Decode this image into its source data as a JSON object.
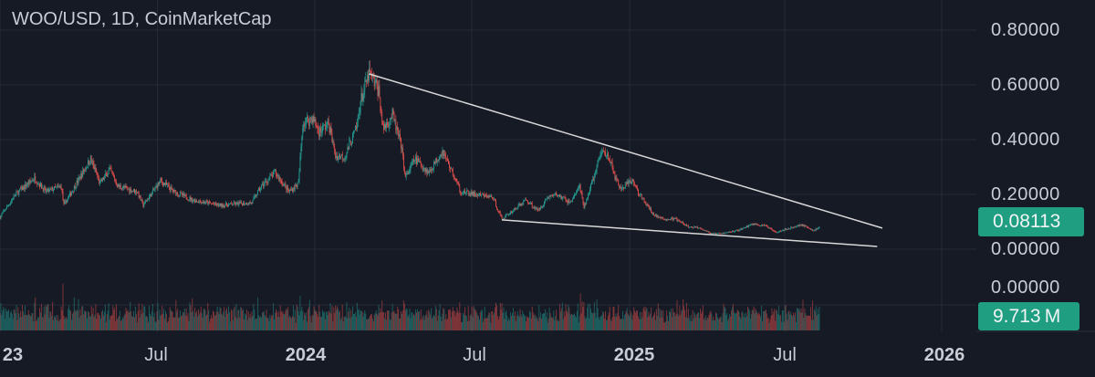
{
  "header": {
    "title": "WOO/USD, 1D, CoinMarketCap"
  },
  "colors": {
    "background": "#161a25",
    "up": "#26a69a",
    "down": "#ef5350",
    "grid": "#252a36",
    "trendline": "#d8d8d8",
    "badge": "#1f9e82"
  },
  "price_axis": {
    "ticks": [
      "0.80000",
      "0.60000",
      "0.40000",
      "0.20000",
      "0.00000"
    ],
    "volume_tick": "0.00000"
  },
  "time_axis": {
    "ticks": [
      {
        "label": "23",
        "bold": true
      },
      {
        "label": "Jul",
        "bold": false
      },
      {
        "label": "2024",
        "bold": true
      },
      {
        "label": "Jul",
        "bold": false
      },
      {
        "label": "2025",
        "bold": true
      },
      {
        "label": "Jul",
        "bold": false
      },
      {
        "label": "2026",
        "bold": true
      }
    ]
  },
  "last_price": "0.08113",
  "last_volume": "9.713 M",
  "chart_data": {
    "type": "candlestick",
    "title": "WOO/USD, 1D, CoinMarketCap",
    "ylim": [
      0,
      0.8
    ],
    "xlim": [
      "2023-01-01",
      "2026-03-01"
    ],
    "grid": true,
    "price_scale": "right",
    "close_path": [
      [
        "2023-01-01",
        0.117
      ],
      [
        "2023-01-19",
        0.2
      ],
      [
        "2023-02-10",
        0.26
      ],
      [
        "2023-02-23",
        0.21
      ],
      [
        "2023-03-13",
        0.23
      ],
      [
        "2023-03-16",
        0.16
      ],
      [
        "2023-04-16",
        0.33
      ],
      [
        "2023-04-27",
        0.24
      ],
      [
        "2023-05-08",
        0.29
      ],
      [
        "2023-05-18",
        0.23
      ],
      [
        "2023-06-09",
        0.21
      ],
      [
        "2023-06-16",
        0.16
      ],
      [
        "2023-07-06",
        0.25
      ],
      [
        "2023-07-22",
        0.21
      ],
      [
        "2023-08-12",
        0.18
      ],
      [
        "2023-09-13",
        0.16
      ],
      [
        "2023-10-20",
        0.17
      ],
      [
        "2023-10-31",
        0.23
      ],
      [
        "2023-11-16",
        0.28
      ],
      [
        "2023-12-02",
        0.21
      ],
      [
        "2023-12-13",
        0.24
      ],
      [
        "2023-12-18",
        0.46
      ],
      [
        "2023-12-29",
        0.48
      ],
      [
        "2024-01-06",
        0.43
      ],
      [
        "2024-01-17",
        0.46
      ],
      [
        "2024-01-25",
        0.34
      ],
      [
        "2024-02-05",
        0.34
      ],
      [
        "2024-02-18",
        0.44
      ],
      [
        "2024-02-23",
        0.54
      ],
      [
        "2024-03-04",
        0.64
      ],
      [
        "2024-03-15",
        0.58
      ],
      [
        "2024-03-20",
        0.44
      ],
      [
        "2024-03-31",
        0.49
      ],
      [
        "2024-04-10",
        0.38
      ],
      [
        "2024-04-15",
        0.26
      ],
      [
        "2024-04-26",
        0.33
      ],
      [
        "2024-05-12",
        0.28
      ],
      [
        "2024-05-28",
        0.36
      ],
      [
        "2024-06-07",
        0.29
      ],
      [
        "2024-06-18",
        0.21
      ],
      [
        "2024-07-04",
        0.2
      ],
      [
        "2024-07-25",
        0.19
      ],
      [
        "2024-08-05",
        0.11
      ],
      [
        "2024-08-21",
        0.15
      ],
      [
        "2024-09-02",
        0.18
      ],
      [
        "2024-09-16",
        0.14
      ],
      [
        "2024-09-27",
        0.19
      ],
      [
        "2024-10-07",
        0.2
      ],
      [
        "2024-10-23",
        0.17
      ],
      [
        "2024-11-03",
        0.23
      ],
      [
        "2024-11-08",
        0.15
      ],
      [
        "2024-11-17",
        0.24
      ],
      [
        "2024-11-29",
        0.36
      ],
      [
        "2024-12-07",
        0.34
      ],
      [
        "2024-12-12",
        0.28
      ],
      [
        "2024-12-20",
        0.22
      ],
      [
        "2025-01-04",
        0.25
      ],
      [
        "2025-01-11",
        0.2
      ],
      [
        "2025-01-27",
        0.13
      ],
      [
        "2025-02-06",
        0.11
      ],
      [
        "2025-02-22",
        0.11
      ],
      [
        "2025-03-10",
        0.08
      ],
      [
        "2025-03-21",
        0.08
      ],
      [
        "2025-04-05",
        0.057
      ],
      [
        "2025-04-16",
        0.057
      ],
      [
        "2025-05-07",
        0.07
      ],
      [
        "2025-05-23",
        0.093
      ],
      [
        "2025-06-08",
        0.083
      ],
      [
        "2025-06-19",
        0.063
      ],
      [
        "2025-07-05",
        0.077
      ],
      [
        "2025-07-19",
        0.09
      ],
      [
        "2025-08-01",
        0.067
      ],
      [
        "2025-08-08",
        0.08113
      ]
    ],
    "trendlines": [
      {
        "from": [
          "2024-03-04",
          0.64
        ],
        "to": [
          "2025-10-20",
          0.077
        ]
      },
      {
        "from": [
          "2024-08-05",
          0.107
        ],
        "to": [
          "2025-10-14",
          0.01
        ]
      }
    ]
  }
}
